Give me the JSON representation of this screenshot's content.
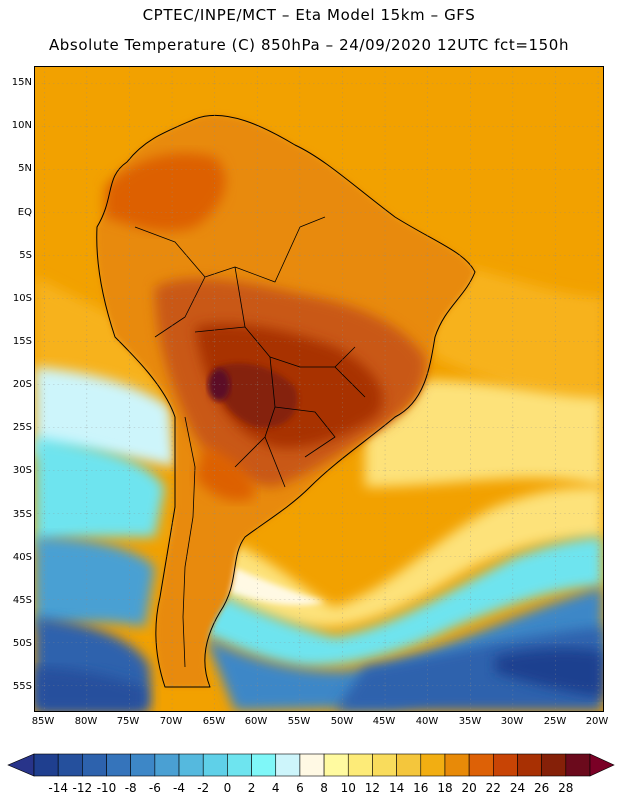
{
  "header": {
    "line1": "CPTEC/INPE/MCT –  Eta Model 15km – GFS",
    "line2": "Absolute Temperature (C) 850hPa – 24/09/2020 12UTC fct=150h"
  },
  "axes": {
    "lat_labels": [
      "15N",
      "10N",
      "5N",
      "EQ",
      "5S",
      "10S",
      "15S",
      "20S",
      "25S",
      "30S",
      "35S",
      "40S",
      "45S",
      "50S",
      "55S"
    ],
    "lon_labels": [
      "85W",
      "80W",
      "75W",
      "70W",
      "65W",
      "60W",
      "55W",
      "50W",
      "45W",
      "40W",
      "35W",
      "30W",
      "25W",
      "20W"
    ]
  },
  "colorbar": {
    "labels": [
      "-14",
      "-12",
      "-10",
      "-8",
      "-6",
      "-4",
      "-2",
      "0",
      "2",
      "4",
      "6",
      "8",
      "10",
      "12",
      "14",
      "16",
      "18",
      "20",
      "22",
      "24",
      "26",
      "28"
    ],
    "colors": [
      "#1f3f8f",
      "#25509d",
      "#2d62ad",
      "#3574bb",
      "#3d87c7",
      "#4aa0d3",
      "#55b9de",
      "#5fd0e8",
      "#6ee4ef",
      "#7ff7f8",
      "#cdf5fb",
      "#fff9e4",
      "#fffaa0",
      "#fdeb78",
      "#f9dc5c",
      "#f4c63c",
      "#f2ae12",
      "#e88a08",
      "#dd6106",
      "#c84405",
      "#a83003",
      "#852008",
      "#6b0a1c"
    ],
    "under_color": "#28348a",
    "over_color": "#7a0026"
  },
  "field_colors": {
    "ocean_north": "#f2a100",
    "ocean_warm": "#f7b21c",
    "subtropics": "#fde27a",
    "cool_band": "#6ee4ef",
    "cold_band": "#3d87c7",
    "coldest": "#1f3f8f",
    "land_hot": "#c95812",
    "land_very_hot": "#8e2e0a",
    "hot_spot": "#5c0a26",
    "borders": "#000000"
  }
}
